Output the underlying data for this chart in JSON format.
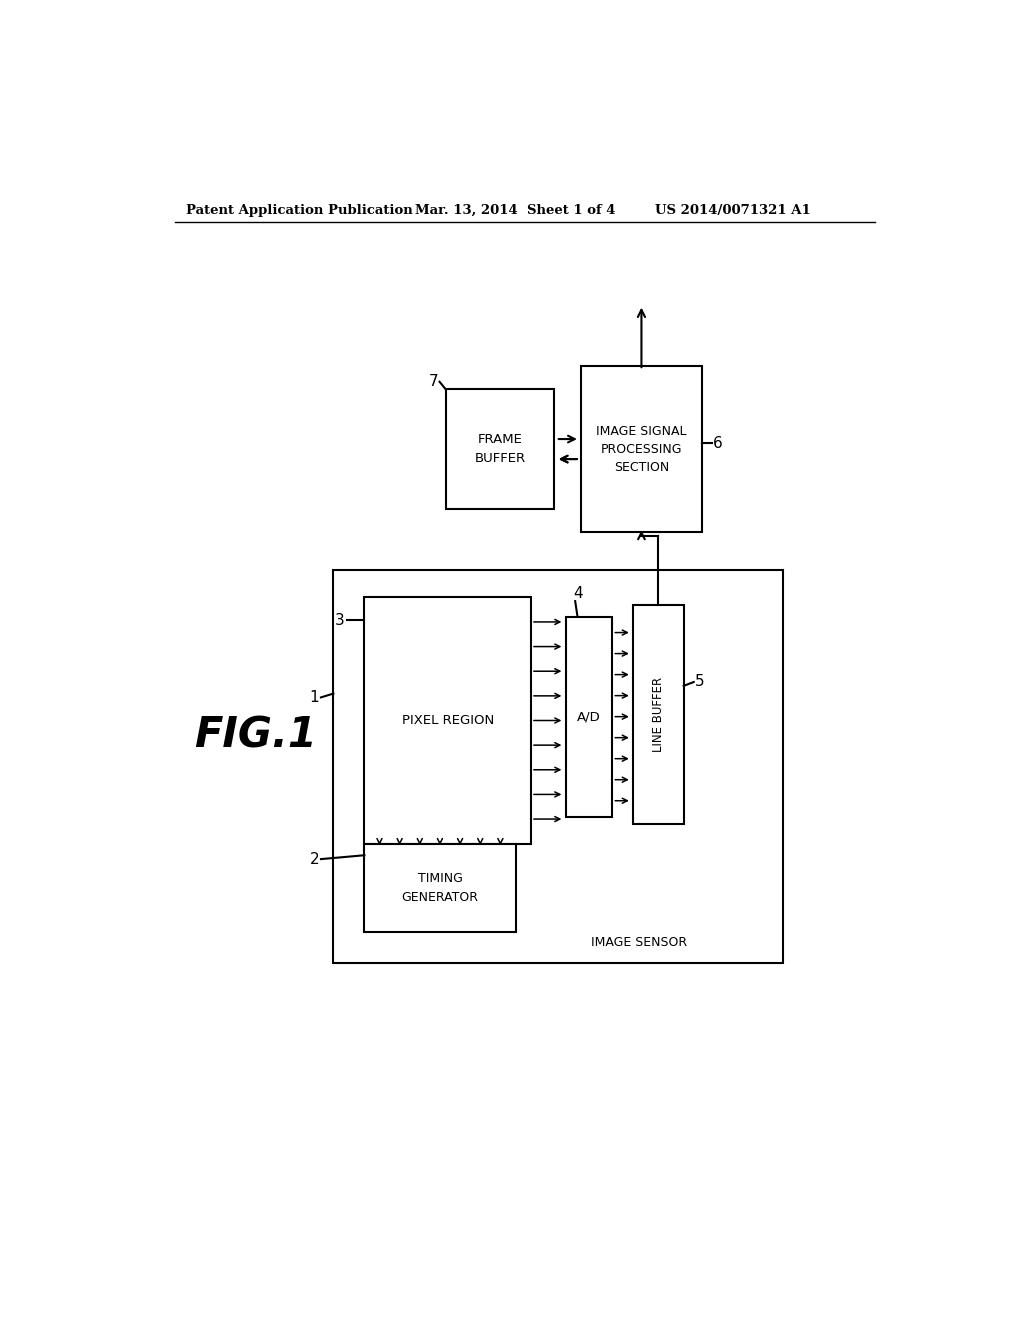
{
  "bg_color": "#ffffff",
  "line_color": "#000000",
  "header_text": "Patent Application Publication",
  "header_date": "Mar. 13, 2014  Sheet 1 of 4",
  "header_patent": "US 2014/0071321 A1",
  "fig_label": "FIG.1",
  "pixel_region_text": "PIXEL REGION",
  "ad_text": "A/D",
  "line_buffer_text": "LINE BUFFER",
  "timing_gen_text": "TIMING\nGENERATOR",
  "frame_buffer_text": "FRAME\nBUFFER",
  "image_signal_text": "IMAGE SIGNAL\nPROCESSING\nSECTION",
  "image_sensor_text": "IMAGE SENSOR"
}
